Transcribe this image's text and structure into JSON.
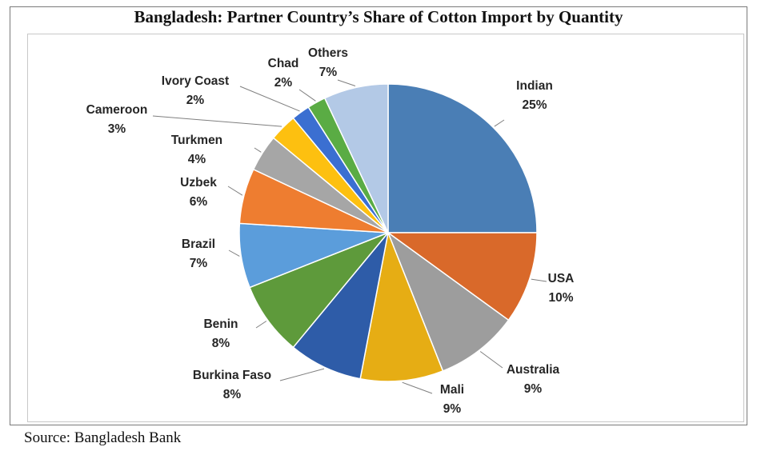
{
  "chart_data": {
    "type": "pie",
    "title": "Bangladesh: Partner Country’s Share of Cotton Import by Quantity",
    "slices": [
      {
        "label": "Indian",
        "value_text": "25%",
        "value": 25,
        "color": "#4a7eb5"
      },
      {
        "label": "USA",
        "value_text": "10%",
        "value": 10,
        "color": "#d9692a"
      },
      {
        "label": "Australia",
        "value_text": "9%",
        "value": 9,
        "color": "#9d9d9d"
      },
      {
        "label": "Mali",
        "value_text": "9%",
        "value": 9,
        "color": "#e6ad14"
      },
      {
        "label": "Burkina Faso",
        "value_text": "8%",
        "value": 8,
        "color": "#2e5ca8"
      },
      {
        "label": "Benin",
        "value_text": "8%",
        "value": 8,
        "color": "#5e9a3b"
      },
      {
        "label": "Brazil",
        "value_text": "7%",
        "value": 7,
        "color": "#5b9ddb"
      },
      {
        "label": "Uzbek",
        "value_text": "6%",
        "value": 6,
        "color": "#ee7d30"
      },
      {
        "label": "Turkmen",
        "value_text": "4%",
        "value": 4,
        "color": "#a6a6a6"
      },
      {
        "label": "Cameroon",
        "value_text": "3%",
        "value": 3,
        "color": "#fdc010"
      },
      {
        "label": "Ivory Coast",
        "value_text": "2%",
        "value": 2,
        "color": "#3b6fd1"
      },
      {
        "label": "Chad",
        "value_text": "2%",
        "value": 2,
        "color": "#5aac44"
      },
      {
        "label": "Others",
        "value_text": "7%",
        "value": 7,
        "color": "#b3c9e6"
      }
    ],
    "legend": "none",
    "data_labels": "outside with leader lines"
  },
  "source": "Source: Bangladesh Bank"
}
